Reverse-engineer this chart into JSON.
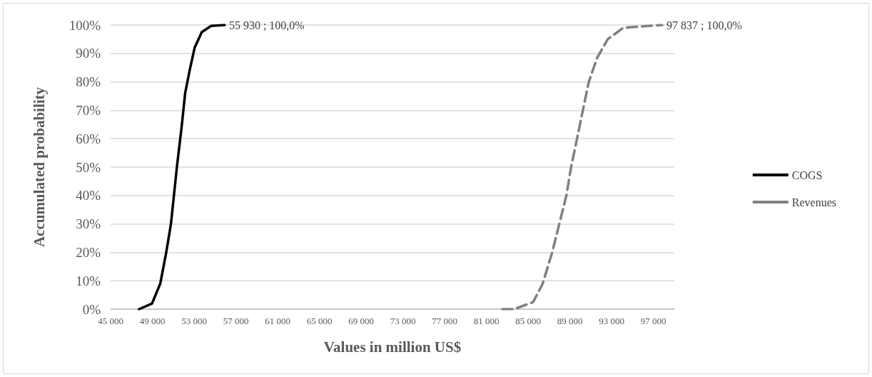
{
  "chart_data": {
    "type": "line",
    "xlabel": "Values in million US$",
    "ylabel": "Accumulated probability",
    "xlim": [
      45000,
      99000
    ],
    "xticks": [
      {
        "value": 45000,
        "label": "45 000"
      },
      {
        "value": 49000,
        "label": "49 000"
      },
      {
        "value": 53000,
        "label": "53 000"
      },
      {
        "value": 57000,
        "label": "57 000"
      },
      {
        "value": 61000,
        "label": "61 000"
      },
      {
        "value": 65000,
        "label": "65 000"
      },
      {
        "value": 69000,
        "label": "69 000"
      },
      {
        "value": 73000,
        "label": "73 000"
      },
      {
        "value": 77000,
        "label": "77 000"
      },
      {
        "value": 81000,
        "label": "81 000"
      },
      {
        "value": 85000,
        "label": "85 000"
      },
      {
        "value": 89000,
        "label": "89 000"
      },
      {
        "value": 93000,
        "label": "93 000"
      },
      {
        "value": 97000,
        "label": "97 000"
      }
    ],
    "ylim": [
      0,
      100
    ],
    "yticks": [
      {
        "value": 0,
        "label": "0%"
      },
      {
        "value": 10,
        "label": "10%"
      },
      {
        "value": 20,
        "label": "20%"
      },
      {
        "value": 30,
        "label": "30%"
      },
      {
        "value": 40,
        "label": "40%"
      },
      {
        "value": 50,
        "label": "50%"
      },
      {
        "value": 60,
        "label": "60%"
      },
      {
        "value": 70,
        "label": "70%"
      },
      {
        "value": 80,
        "label": "80%"
      },
      {
        "value": 90,
        "label": "90%"
      },
      {
        "value": 100,
        "label": "100%"
      }
    ],
    "grid": "y",
    "legend": "right",
    "marker": "none",
    "series": [
      {
        "name": "COGS",
        "color": "#000000",
        "line_style": "solid",
        "x": [
          47720,
          48970,
          49760,
          50330,
          50780,
          51350,
          51800,
          52140,
          52600,
          53050,
          53730,
          54630,
          55930
        ],
        "values": [
          0,
          2,
          9,
          20,
          30,
          50,
          64,
          76,
          84.5,
          92,
          97.5,
          99.7,
          100
        ],
        "value_labels": [
          null,
          null,
          null,
          null,
          null,
          null,
          null,
          null,
          null,
          null,
          null,
          null,
          "55 930 ; 100,0%"
        ]
      },
      {
        "name": "Revenues",
        "color": "#808080",
        "line_style": "dashed",
        "x": [
          82530,
          83640,
          85480,
          86390,
          87300,
          87980,
          88660,
          89110,
          89680,
          90240,
          90810,
          91600,
          92620,
          94100,
          97030,
          97837
        ],
        "values": [
          0,
          0,
          2.5,
          9,
          20,
          30,
          40,
          50,
          60,
          70,
          80,
          88.4,
          95,
          99,
          99.8,
          100
        ],
        "value_labels": [
          null,
          null,
          null,
          null,
          null,
          null,
          null,
          null,
          null,
          null,
          null,
          null,
          null,
          null,
          null,
          "97 837 ; 100,0%"
        ]
      }
    ]
  }
}
